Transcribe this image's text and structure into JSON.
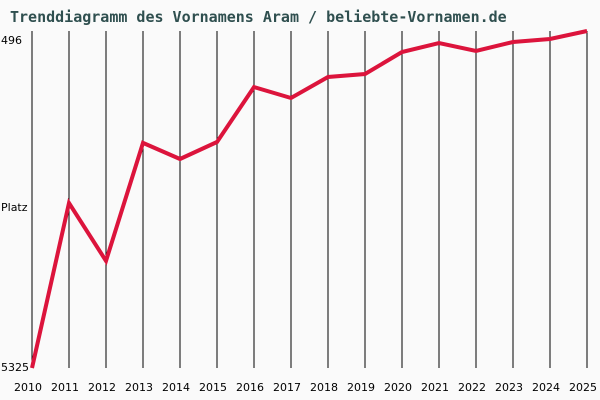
{
  "chart_data": {
    "type": "line",
    "title": "Trenddiagramm des Vornamens Aram / beliebte-Vornamen.de",
    "xlabel": "",
    "ylabel": "Platz",
    "y_inverted": true,
    "ylim": [
      5325,
      496
    ],
    "yticks": [
      "496",
      "5325"
    ],
    "grid": "vertical",
    "line_color": "#dc143c",
    "categories": [
      "2010",
      "2011",
      "2012",
      "2013",
      "2014",
      "2015",
      "2016",
      "2017",
      "2018",
      "2019",
      "2020",
      "2021",
      "2022",
      "2023",
      "2024",
      "2025"
    ],
    "series": [
      {
        "name": "Aram",
        "values": [
          5325,
          2960,
          3790,
          2100,
          2330,
          2086,
          1300,
          1456,
          1155,
          1112,
          797,
          668,
          783,
          654,
          611,
          496
        ]
      }
    ]
  },
  "labels": {
    "title": "Trenddiagramm des Vornamens Aram / beliebte-Vornamen.de",
    "y_top": "496",
    "y_mid": "Platz",
    "y_bottom": "5325"
  }
}
